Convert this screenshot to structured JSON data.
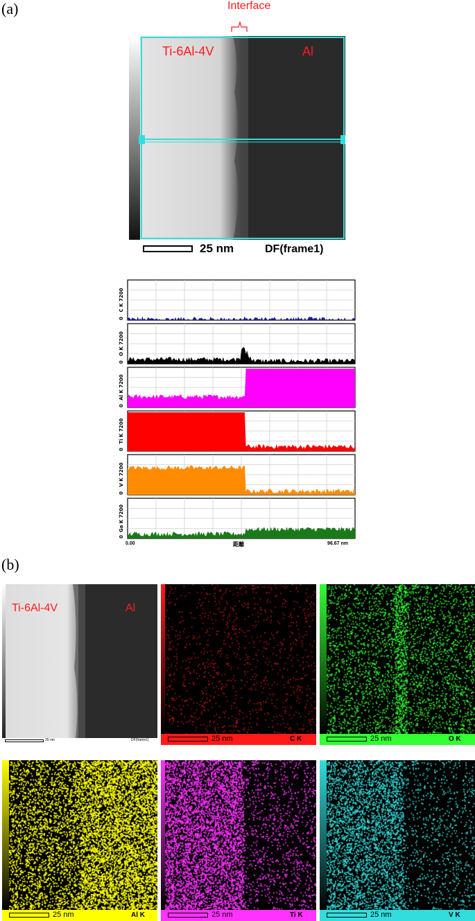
{
  "panel_a": {
    "label": "(a)",
    "interface_label": "Interface",
    "image": {
      "left_label": "Ti-6Al-4V",
      "right_label": "Al",
      "scale_text": "25 nm",
      "mode_text": "DF(frame1)"
    },
    "line_scan": {
      "x_start": "0.00",
      "x_end": "96.67 nm",
      "x_label": "距離"
    }
  },
  "panel_b": {
    "label": "(b)",
    "df_image": {
      "left_label": "Ti-6Al-4V",
      "right_label": "Al",
      "scale_text": "25 nm",
      "mode_text": "DF(frame1)"
    },
    "maps": [
      {
        "id": "c",
        "scale_text": "25 nm",
        "element": "C K",
        "color": "#ff1a1a"
      },
      {
        "id": "o",
        "scale_text": "25 nm",
        "element": "O K",
        "color": "#33ff33"
      },
      {
        "id": "al",
        "scale_text": "25 nm",
        "element": "Al K",
        "color": "#ffff00"
      },
      {
        "id": "ti",
        "scale_text": "25 nm",
        "element": "Ti K",
        "color": "#ff33ff"
      },
      {
        "id": "v",
        "scale_text": "25 nm",
        "element": "V K",
        "color": "#33dddd"
      }
    ]
  },
  "chart_data": {
    "type": "area",
    "x_range": [
      0,
      96.67
    ],
    "x_unit": "nm",
    "x_ticks": [
      "0.00",
      "96.67 nm"
    ],
    "xlabel": "距離",
    "interface_position_nm": 50,
    "grid": true,
    "series": [
      {
        "name": "C K",
        "ytop": "7200",
        "ybottom": "0",
        "color": "#1a1a99",
        "left_level": 0.02,
        "right_level": 0.02,
        "transition": "none"
      },
      {
        "name": "O K",
        "ytop": "7200",
        "ybottom": "0",
        "color": "#000000",
        "left_level": 0.12,
        "right_level": 0.08,
        "peak_at_interface": 0.45
      },
      {
        "name": "Al K",
        "ytop": "7200",
        "ybottom": "0",
        "color": "#ff00ff",
        "left_level": 0.28,
        "right_level": 1.0
      },
      {
        "name": "Ti K",
        "ytop": "7200",
        "ybottom": "0",
        "color": "#ff0000",
        "left_level": 1.0,
        "right_level": 0.12
      },
      {
        "name": "V K",
        "ytop": "7200",
        "ybottom": "0",
        "color": "#ff8c00",
        "left_level": 0.7,
        "right_level": 0.1
      },
      {
        "name": "Ga K",
        "ytop": "7200",
        "ybottom": "0",
        "color": "#1a7a1a",
        "left_level": 0.12,
        "right_level": 0.24
      }
    ]
  }
}
